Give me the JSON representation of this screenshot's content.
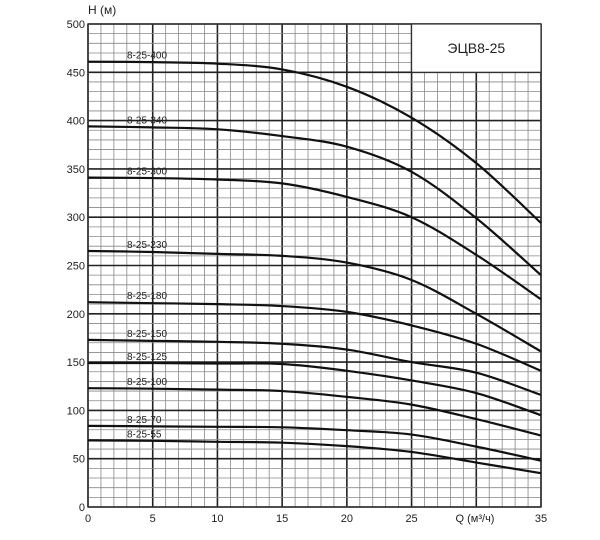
{
  "chart_data": {
    "type": "line",
    "title": "ЭЦВ8-25",
    "xlabel": "Q (м³/ч)",
    "ylabel": "H (м)",
    "xlim": [
      0,
      35
    ],
    "ylim": [
      0,
      500
    ],
    "x_ticks": [
      "0",
      "5",
      "10",
      "15",
      "20",
      "25",
      "35"
    ],
    "y_ticks": [
      "0",
      "50",
      "100",
      "150",
      "200",
      "250",
      "300",
      "350",
      "400",
      "450",
      "500"
    ],
    "grid": true,
    "grid_minor": {
      "x_step": 1,
      "y_step": 10
    },
    "grid_major": {
      "x_step": 5,
      "y_step": 50
    },
    "x": [
      0,
      5,
      10,
      15,
      20,
      25,
      30,
      35
    ],
    "series": [
      {
        "name": "8-25-400",
        "values": [
          461,
          460.5,
          459,
          453,
          435,
          403,
          356,
          294
        ]
      },
      {
        "name": "8-25-340",
        "values": [
          394,
          393,
          391,
          384,
          373,
          347,
          299,
          240
        ]
      },
      {
        "name": "8-25-300",
        "values": [
          341,
          340.5,
          339,
          335,
          321,
          300,
          261,
          215
        ]
      },
      {
        "name": "8-25-230",
        "values": [
          265,
          264,
          262,
          260,
          253,
          235,
          200,
          161
        ]
      },
      {
        "name": "8-25-180",
        "values": [
          212,
          211,
          210,
          208,
          202,
          188,
          169,
          141
        ]
      },
      {
        "name": "8-25-150",
        "values": [
          173,
          172,
          171,
          169,
          163,
          150,
          139,
          116
        ]
      },
      {
        "name": "8-25-125",
        "values": [
          149,
          149,
          148.5,
          148,
          141,
          131,
          118,
          95
        ]
      },
      {
        "name": "8-25-100",
        "values": [
          123,
          122.5,
          121.5,
          120,
          114,
          106,
          91,
          74
        ]
      },
      {
        "name": "8-25-70",
        "values": [
          84,
          83.5,
          83,
          82.5,
          79.5,
          75,
          62.5,
          48
        ]
      },
      {
        "name": "8-25-55",
        "values": [
          69,
          68.5,
          67.5,
          66.6,
          63,
          57,
          46,
          35
        ]
      }
    ],
    "line_color": "#111111"
  }
}
